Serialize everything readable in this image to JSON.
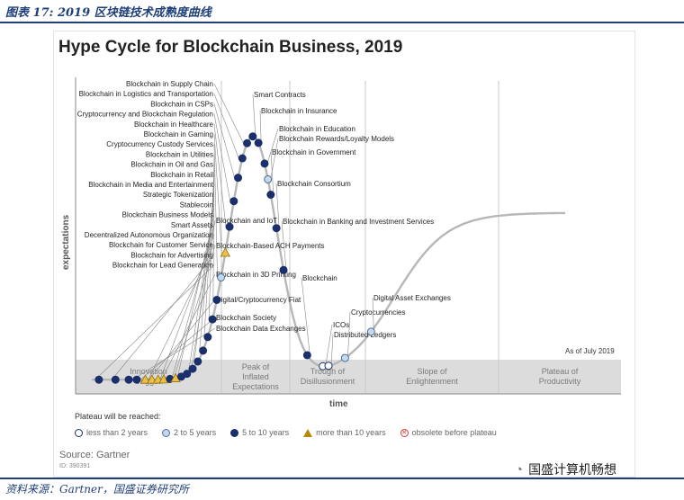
{
  "caption": "图表 17: 2019 区块链技术成熟度曲线",
  "source_line": "资料来源：Gartner，国盛证券研究所",
  "brand": {
    "icon": "wechat-icon",
    "name": "国盛计算机畅想"
  },
  "chart_data": {
    "type": "line",
    "title": "Hype Cycle for Blockchain Business, 2019",
    "xlabel": "time",
    "ylabel": "expectations",
    "as_of": "As of July 2019",
    "phases": [
      "Innovation Trigger",
      "Peak of Inflated Expectations",
      "Trough of Disillusionment",
      "Slope of Enlightenment",
      "Plateau of Productivity"
    ],
    "legend_title": "Plateau will be reached:",
    "legend": [
      {
        "key": "lt2",
        "label": "less than 2 years"
      },
      {
        "key": "y2to5",
        "label": "2 to 5 years"
      },
      {
        "key": "y5to10",
        "label": "5 to 10 years"
      },
      {
        "key": "gt10",
        "label": "more than 10 years"
      },
      {
        "key": "obs",
        "label": "obsolete before plateau"
      }
    ],
    "technologies": [
      {
        "name": "Blockchain for Lead Generation",
        "t": 0.015,
        "cat": "y5to10"
      },
      {
        "name": "Blockchain for Advertising",
        "t": 0.05,
        "cat": "y5to10"
      },
      {
        "name": "Blockchain Data Exchanges",
        "t": 0.078,
        "cat": "y5to10"
      },
      {
        "name": "Blockchain Society",
        "t": 0.095,
        "cat": "y5to10"
      },
      {
        "name": "Digital/Cryptocurrency Fiat",
        "t": 0.113,
        "cat": "gt10"
      },
      {
        "name": "Blockchain for Customer Service",
        "t": 0.127,
        "cat": "gt10"
      },
      {
        "name": "Blockchain in 3D Printing",
        "t": 0.14,
        "cat": "gt10"
      },
      {
        "name": "Decentralized Autonomous Organization",
        "t": 0.152,
        "cat": "gt10"
      },
      {
        "name": "Blockchain-Based ACH Payments",
        "t": 0.165,
        "cat": "y5to10"
      },
      {
        "name": "Smart Assets",
        "t": 0.177,
        "cat": "gt10"
      },
      {
        "name": "Blockchain Business Models",
        "t": 0.189,
        "cat": "y5to10"
      },
      {
        "name": "Blockchain and IoT",
        "t": 0.201,
        "cat": "y5to10"
      },
      {
        "name": "Stablecoin",
        "t": 0.213,
        "cat": "y5to10"
      },
      {
        "name": "Strategic Tokenization",
        "t": 0.224,
        "cat": "y5to10"
      },
      {
        "name": "Blockchain in Media and Entertainment",
        "t": 0.235,
        "cat": "y5to10"
      },
      {
        "name": "Blockchain in Retail",
        "t": 0.245,
        "cat": "y5to10"
      },
      {
        "name": "Blockchain in Oil and Gas",
        "t": 0.255,
        "cat": "y5to10"
      },
      {
        "name": "Blockchain in Utilities",
        "t": 0.264,
        "cat": "y5to10"
      },
      {
        "name": "Cryptocurrency Custody Services",
        "t": 0.273,
        "cat": "y2to5"
      },
      {
        "name": "Blockchain in Gaming",
        "t": 0.282,
        "cat": "gt10"
      },
      {
        "name": "Blockchain in Healthcare",
        "t": 0.291,
        "cat": "y5to10"
      },
      {
        "name": "Cryptocurrency and Blockchain Regulation",
        "t": 0.3,
        "cat": "y5to10"
      },
      {
        "name": "Blockchain in CSPs",
        "t": 0.309,
        "cat": "y5to10"
      },
      {
        "name": "Blockchain in Logistics and Transportation",
        "t": 0.318,
        "cat": "y5to10"
      },
      {
        "name": "Blockchain in Supply Chain",
        "t": 0.328,
        "cat": "y5to10"
      },
      {
        "name": "Smart Contracts",
        "t": 0.34,
        "cat": "y5to10"
      },
      {
        "name": "Blockchain in Insurance",
        "t": 0.352,
        "cat": "y5to10"
      },
      {
        "name": "Blockchain in Education",
        "t": 0.365,
        "cat": "y5to10"
      },
      {
        "name": "Blockchain Rewards/Loyalty Models",
        "t": 0.372,
        "cat": "y2to5"
      },
      {
        "name": "Blockchain in Government",
        "t": 0.378,
        "cat": "y5to10"
      },
      {
        "name": "Blockchain Consortium",
        "t": 0.39,
        "cat": "y5to10"
      },
      {
        "name": "Blockchain in Banking and Investment Services",
        "t": 0.405,
        "cat": "y5to10"
      },
      {
        "name": "Blockchain",
        "t": 0.455,
        "cat": "y5to10"
      },
      {
        "name": "ICOs",
        "t": 0.488,
        "cat": "lt2"
      },
      {
        "name": "Distributed Ledgers",
        "t": 0.5,
        "cat": "lt2"
      },
      {
        "name": "Cryptocurrencies",
        "t": 0.535,
        "cat": "y2to5"
      },
      {
        "name": "Digital Asset Exchanges",
        "t": 0.59,
        "cat": "y2to5"
      }
    ]
  },
  "src": {
    "label": "Source: Gartner",
    "id": "ID: 390391"
  }
}
